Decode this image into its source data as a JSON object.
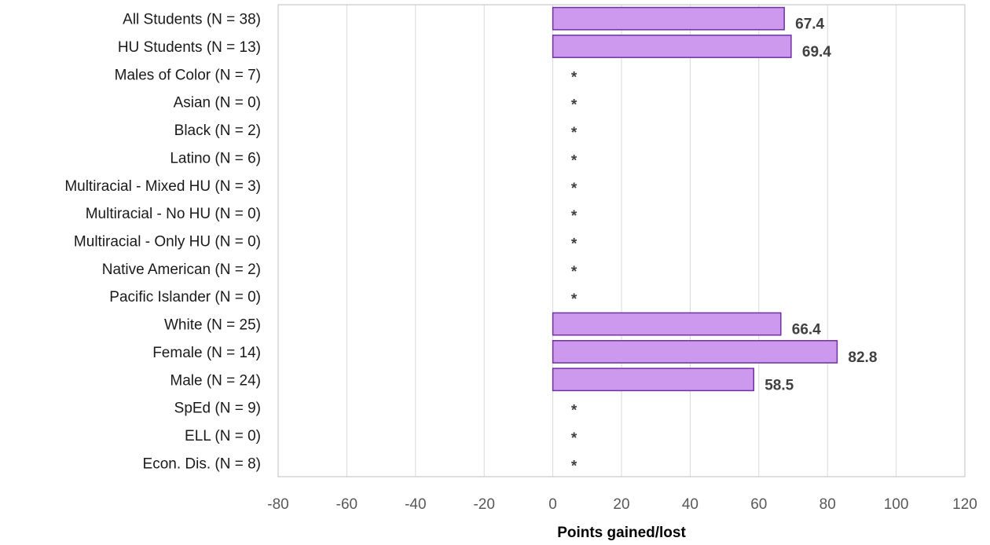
{
  "chart_data": {
    "type": "bar",
    "orientation": "horizontal",
    "categories": [
      "All Students (N = 38)",
      "HU Students (N = 13)",
      "Males of Color (N = 7)",
      "Asian (N = 0)",
      "Black (N = 2)",
      "Latino (N = 6)",
      "Multiracial - Mixed HU (N = 3)",
      "Multiracial - No HU (N = 0)",
      "Multiracial - Only HU (N = 0)",
      "Native American (N = 2)",
      "Pacific Islander (N = 0)",
      "White (N = 25)",
      "Female (N = 14)",
      "Male (N = 24)",
      "SpEd (N = 9)",
      "ELL (N = 0)",
      "Econ. Dis. (N = 8)"
    ],
    "values": [
      67.4,
      69.4,
      null,
      null,
      null,
      null,
      null,
      null,
      null,
      null,
      null,
      66.4,
      82.8,
      58.5,
      null,
      null,
      null
    ],
    "value_labels": [
      "67.4",
      "69.4",
      "*",
      "*",
      "*",
      "*",
      "*",
      "*",
      "*",
      "*",
      "*",
      "66.4",
      "82.8",
      "58.5",
      "*",
      "*",
      "*"
    ],
    "xlabel": "Points gained/lost",
    "ylabel": "",
    "xlim": [
      -80,
      120
    ],
    "xticks": [
      -80,
      -60,
      -40,
      -20,
      0,
      20,
      40,
      60,
      80,
      100,
      120
    ],
    "xtick_labels": [
      "-80",
      "-60",
      "-40",
      "-20",
      "0",
      "20",
      "40",
      "60",
      "80",
      "100",
      "120"
    ],
    "grid": "vertical",
    "legend": "none",
    "colors": {
      "bar_fill": "#cc99ee",
      "bar_stroke": "#7030a0",
      "grid": "#d9d9d9",
      "border": "#bfbfbf"
    }
  }
}
